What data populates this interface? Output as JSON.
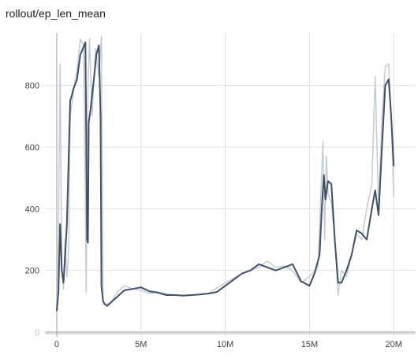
{
  "chart_data": {
    "type": "line",
    "title": "rollout/ep_len_mean",
    "xlabel": "",
    "ylabel": "",
    "xlim": [
      -0.7,
      21.3
    ],
    "ylim": [
      -5,
      970
    ],
    "x_ticks": [
      {
        "value": 0,
        "label": "0"
      },
      {
        "value": 5,
        "label": "5M"
      },
      {
        "value": 10,
        "label": "10M"
      },
      {
        "value": 15,
        "label": "15M"
      },
      {
        "value": 20,
        "label": "20M"
      }
    ],
    "y_ticks": [
      {
        "value": 0,
        "label": "0"
      },
      {
        "value": 200,
        "label": "200"
      },
      {
        "value": 400,
        "label": "400"
      },
      {
        "value": 600,
        "label": "600"
      },
      {
        "value": 800,
        "label": "800"
      }
    ],
    "grid": true,
    "colors": {
      "smoothed": "#425066",
      "raw": "#c5cbd6",
      "grid": "#e0e0e0",
      "axis": "#bdbdbd"
    },
    "series": [
      {
        "style": "raw",
        "x": [
          0,
          0.1,
          0.2,
          0.3,
          0.4,
          0.5,
          0.6,
          0.7,
          0.8,
          1.0,
          1.2,
          1.4,
          1.6,
          1.75,
          1.85,
          1.95,
          2.1,
          2.3,
          2.5,
          2.65,
          2.75,
          2.9,
          3.2,
          3.6,
          4,
          4.5,
          5,
          5.5,
          6,
          7,
          8,
          9,
          10,
          11,
          12,
          12.5,
          13,
          13.5,
          14,
          14.5,
          15,
          15.5,
          15.8,
          15.9,
          16.0,
          16.1,
          16.3,
          16.5,
          16.7,
          16.9,
          17.2,
          17.5,
          17.8,
          18.1,
          18.4,
          18.7,
          18.9,
          19.1,
          19.3,
          19.5,
          19.7,
          19.85,
          20.0
        ],
        "y": [
          60,
          300,
          870,
          200,
          140,
          300,
          180,
          250,
          700,
          780,
          850,
          950,
          930,
          130,
          800,
          950,
          700,
          920,
          830,
          960,
          100,
          90,
          95,
          130,
          150,
          140,
          135,
          125,
          130,
          120,
          120,
          125,
          160,
          190,
          210,
          230,
          210,
          215,
          200,
          160,
          180,
          210,
          620,
          300,
          570,
          450,
          420,
          300,
          120,
          200,
          180,
          250,
          320,
          300,
          400,
          480,
          830,
          400,
          700,
          860,
          870,
          700,
          440
        ]
      },
      {
        "style": "smoothed",
        "x": [
          0,
          0.1,
          0.2,
          0.3,
          0.4,
          0.5,
          0.6,
          0.7,
          0.8,
          0.9,
          1.0,
          1.2,
          1.4,
          1.55,
          1.7,
          1.8,
          1.85,
          1.9,
          2.0,
          2.2,
          2.35,
          2.5,
          2.6,
          2.65,
          2.75,
          2.85,
          3.0,
          3.2,
          3.5,
          3.8,
          4,
          4.5,
          5,
          5.5,
          6,
          6.5,
          7,
          7.5,
          8,
          8.5,
          9,
          9.5,
          10,
          10.5,
          11,
          11.5,
          12,
          12.5,
          13,
          13.5,
          14,
          14.5,
          15,
          15.3,
          15.6,
          15.75,
          15.85,
          15.95,
          16.1,
          16.3,
          16.5,
          16.7,
          16.9,
          17.2,
          17.5,
          17.8,
          18.1,
          18.4,
          18.7,
          18.9,
          19.1,
          19.3,
          19.5,
          19.7,
          19.85,
          20.0
        ],
        "y": [
          70,
          130,
          350,
          200,
          160,
          250,
          350,
          550,
          750,
          770,
          790,
          820,
          900,
          920,
          940,
          300,
          290,
          680,
          720,
          820,
          900,
          930,
          700,
          150,
          100,
          90,
          85,
          95,
          110,
          125,
          135,
          140,
          145,
          132,
          128,
          120,
          120,
          118,
          120,
          122,
          125,
          130,
          150,
          170,
          190,
          200,
          220,
          210,
          200,
          210,
          220,
          165,
          150,
          190,
          250,
          420,
          510,
          430,
          490,
          480,
          300,
          160,
          160,
          200,
          250,
          330,
          320,
          300,
          400,
          460,
          380,
          600,
          800,
          820,
          700,
          540
        ]
      }
    ]
  }
}
